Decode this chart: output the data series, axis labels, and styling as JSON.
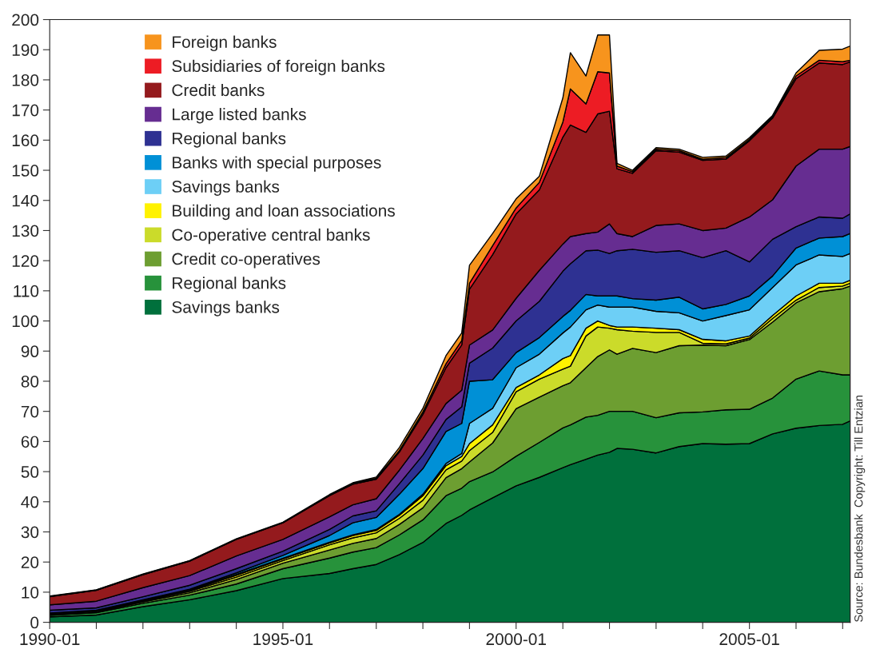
{
  "chart_data": {
    "type": "area",
    "stacked": true,
    "x": [
      "1990-01",
      "1991-01",
      "1992-01",
      "1993-01",
      "1994-01",
      "1995-01",
      "1996-01",
      "1996-07",
      "1997-01",
      "1997-07",
      "1998-01",
      "1998-07",
      "1998-11",
      "1999-01",
      "1999-07",
      "2000-01",
      "2000-07",
      "2001-01",
      "2001-03",
      "2001-07",
      "2001-10",
      "2002-01",
      "2002-03",
      "2002-07",
      "2003-01",
      "2003-07",
      "2004-01",
      "2004-07",
      "2005-01",
      "2005-07",
      "2006-01",
      "2006-07",
      "2007-01",
      "2007-03"
    ],
    "series": [
      {
        "name": "Savings banks",
        "color": "#00703c",
        "values": [
          1.8,
          2.4,
          5.2,
          7.5,
          10.5,
          14.5,
          16.2,
          17.8,
          19.2,
          22.5,
          26.5,
          32.8,
          35.5,
          37.3,
          41.3,
          45.3,
          48.1,
          51.3,
          52.3,
          54.1,
          55.5,
          56.4,
          57.7,
          57.4,
          56.2,
          58.3,
          59.3,
          59.1,
          59.3,
          62.5,
          64.4,
          65.3,
          65.7,
          66.8
        ]
      },
      {
        "name": "Regional banks",
        "color": "#27923b",
        "values": [
          0.5,
          0.8,
          1.1,
          1.5,
          2.2,
          3.3,
          5.1,
          5.5,
          5.6,
          6.5,
          7.5,
          9.2,
          9.0,
          9.4,
          8.6,
          9.8,
          11.6,
          13.2,
          13.2,
          14.0,
          13.2,
          13.6,
          12.3,
          12.6,
          11.7,
          11.2,
          10.5,
          11.4,
          11.4,
          11.9,
          16.3,
          18.1,
          16.4,
          15.3
        ]
      },
      {
        "name": "Credit co-operatives",
        "color": "#6d9e31",
        "values": [
          0.3,
          0.3,
          0.5,
          0.8,
          1.5,
          1.8,
          2.7,
          2.9,
          3.0,
          3.5,
          4.0,
          6.0,
          6.5,
          6.5,
          9.6,
          15.8,
          15.0,
          14.0,
          14.0,
          16.4,
          19.5,
          20.4,
          19.0,
          20.9,
          21.6,
          22.3,
          22.2,
          21.3,
          23.1,
          25.2,
          25.3,
          26.3,
          28.6,
          29.5
        ]
      },
      {
        "name": "Co-operative central banks",
        "color": "#cbdb2a",
        "values": [
          0.2,
          0.2,
          0.3,
          0.5,
          0.8,
          0.9,
          1.7,
          1.8,
          1.9,
          2.0,
          2.5,
          2.6,
          2.5,
          3.8,
          3.5,
          5.6,
          6.0,
          5.5,
          5.5,
          10.5,
          9.8,
          7.2,
          8.1,
          5.7,
          6.7,
          4.4,
          0.6,
          0.6,
          0.5,
          1.2,
          0.9,
          1.4,
          0.9,
          0.9
        ]
      },
      {
        "name": "Building and loan associations",
        "color": "#fff200",
        "values": [
          0.1,
          0.1,
          0.2,
          0.3,
          0.6,
          0.5,
          0.6,
          0.8,
          0.8,
          1.0,
          1.5,
          1.4,
          1.5,
          2.3,
          2.5,
          1.4,
          1.4,
          3.5,
          3.5,
          2.6,
          2.0,
          0.9,
          0.9,
          1.4,
          1.4,
          0.9,
          1.3,
          1.0,
          0.7,
          1.0,
          1.4,
          1.4,
          0.9,
          1.0
        ]
      },
      {
        "name": "Savings banks",
        "color": "#6dcff6",
        "values": [
          0.1,
          0.1,
          0.1,
          0.2,
          0.3,
          0.3,
          0.3,
          0.2,
          0.3,
          0.3,
          0.5,
          0.7,
          1.0,
          6.7,
          5.5,
          6.6,
          6.9,
          8.5,
          9.5,
          6.1,
          5.3,
          6.1,
          6.6,
          6.6,
          5.6,
          5.6,
          6.1,
          8.4,
          8.7,
          9.3,
          10.3,
          9.4,
          8.9,
          8.9
        ]
      },
      {
        "name": "Banks with special purposes",
        "color": "#0090d6",
        "values": [
          0.1,
          0.1,
          0.1,
          0.2,
          0.5,
          0.9,
          2.2,
          4.0,
          4.0,
          6.7,
          8.5,
          10.6,
          10.0,
          14.0,
          9.5,
          5.0,
          5.5,
          5.5,
          5.5,
          5.1,
          3.0,
          3.7,
          3.7,
          2.8,
          3.7,
          5.2,
          4.0,
          3.7,
          4.6,
          3.8,
          5.6,
          5.6,
          6.6,
          6.6
        ]
      },
      {
        "name": "Regional banks",
        "color": "#2e3192",
        "values": [
          0.9,
          0.8,
          1.0,
          1.3,
          1.4,
          1.4,
          2.0,
          2.3,
          2.2,
          3.5,
          4.5,
          4.0,
          5.5,
          6.0,
          10.5,
          10.5,
          12.0,
          15.0,
          15.5,
          14.5,
          15.2,
          14.1,
          15.0,
          16.4,
          15.9,
          15.4,
          17.0,
          17.8,
          11.3,
          12.2,
          7.1,
          7.0,
          6.1,
          6.5
        ]
      },
      {
        "name": "Large listed banks",
        "color": "#662d91",
        "values": [
          1.8,
          2.2,
          3.0,
          3.2,
          4.2,
          3.9,
          4.2,
          3.7,
          4.0,
          4.5,
          5.5,
          5.3,
          5.5,
          6.0,
          6.0,
          7.5,
          10.3,
          9.0,
          9.0,
          5.7,
          6.0,
          9.8,
          5.7,
          4.2,
          8.9,
          8.9,
          9.0,
          7.5,
          14.9,
          13.1,
          20.1,
          22.5,
          22.9,
          22.4
        ]
      },
      {
        "name": "Credit banks",
        "color": "#941a1d",
        "values": [
          2.7,
          3.6,
          4.3,
          4.8,
          5.5,
          5.5,
          7.0,
          6.8,
          6.5,
          6.0,
          8.0,
          11.9,
          15.0,
          18.5,
          25.0,
          28.0,
          26.7,
          35.5,
          37.0,
          33.6,
          39.2,
          37.4,
          21.5,
          21.0,
          24.8,
          23.8,
          23.3,
          22.9,
          25.3,
          27.1,
          29.0,
          28.6,
          28.1,
          28.1
        ]
      },
      {
        "name": "Subsidiaries of foreign banks",
        "color": "#ed1c24",
        "values": [
          0.1,
          0.1,
          0.1,
          0.1,
          0.1,
          0.1,
          0.2,
          0.2,
          0.3,
          0.5,
          0.8,
          1.3,
          1.5,
          2.0,
          3.0,
          2.0,
          2.5,
          5.0,
          12.0,
          9.4,
          14.0,
          12.7,
          0.9,
          0.5,
          0.5,
          0.5,
          0.4,
          0.5,
          0.5,
          0.5,
          0.9,
          0.9,
          0.9,
          0.5
        ]
      },
      {
        "name": "Foreign banks",
        "color": "#f7941d",
        "values": [
          0.1,
          0.1,
          0.1,
          0.1,
          0.1,
          0.1,
          0.2,
          0.3,
          0.4,
          1.0,
          1.2,
          2.7,
          2.5,
          6.0,
          4.0,
          3.0,
          2.0,
          8.0,
          12.0,
          9.3,
          12.2,
          12.6,
          0.9,
          0.5,
          0.5,
          0.5,
          0.6,
          0.5,
          0.5,
          0.4,
          1.0,
          3.3,
          4.2,
          4.7
        ]
      }
    ],
    "xlim": [
      "1990-01",
      "2007-03"
    ],
    "xticks": [
      {
        "value": "1990-01",
        "label": "1990-01"
      },
      {
        "value": "1991-01",
        "label": null
      },
      {
        "value": "1992-01",
        "label": null
      },
      {
        "value": "1993-01",
        "label": null
      },
      {
        "value": "1994-01",
        "label": null
      },
      {
        "value": "1995-01",
        "label": "1995-01"
      },
      {
        "value": "1996-01",
        "label": null
      },
      {
        "value": "1997-01",
        "label": null
      },
      {
        "value": "1998-01",
        "label": null
      },
      {
        "value": "1999-01",
        "label": null
      },
      {
        "value": "2000-01",
        "label": "2000-01"
      },
      {
        "value": "2001-01",
        "label": null
      },
      {
        "value": "2002-01",
        "label": null
      },
      {
        "value": "2003-01",
        "label": null
      },
      {
        "value": "2004-01",
        "label": null
      },
      {
        "value": "2005-01",
        "label": "2005-01"
      },
      {
        "value": "2006-01",
        "label": null
      },
      {
        "value": "2007-01",
        "label": null
      }
    ],
    "ylim": [
      0,
      200
    ],
    "yticks": [
      0,
      10,
      20,
      30,
      40,
      50,
      60,
      70,
      80,
      90,
      100,
      110,
      120,
      130,
      140,
      150,
      160,
      170,
      180,
      190,
      200
    ],
    "legend": "top left",
    "grid": false,
    "annotations": [
      "Source: Bundesbank  Copyright: Till Entzian"
    ]
  }
}
